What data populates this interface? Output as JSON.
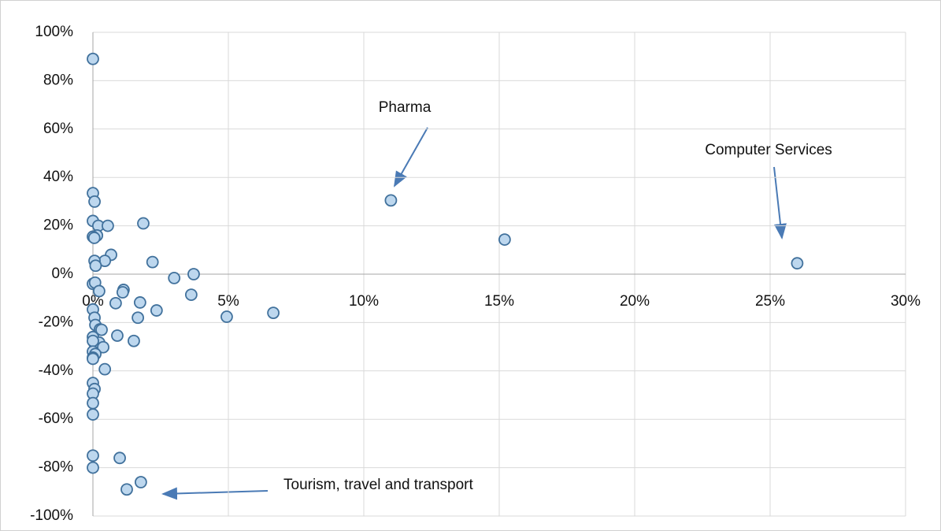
{
  "chart_data": {
    "type": "scatter",
    "x": [
      0,
      0,
      0.06,
      0,
      0.2,
      0.55,
      1.86,
      0.15,
      0,
      0.05,
      0.67,
      0.44,
      0.06,
      0.1,
      2.2,
      3.0,
      3.72,
      3.63,
      0,
      0.08,
      0.23,
      1.13,
      1.1,
      0.84,
      1.74,
      0,
      2.35,
      1.66,
      4.94,
      6.66,
      0.06,
      0.09,
      0.26,
      0.32,
      0.9,
      0,
      1.51,
      0.06,
      0.23,
      0,
      0.38,
      0,
      0.09,
      0,
      0,
      0.44,
      0,
      0.06,
      0,
      0,
      0,
      0,
      0.99,
      0,
      1.77,
      1.25,
      11.0,
      15.2,
      26.0
    ],
    "values": [
      89,
      33.5,
      30,
      22,
      20,
      20,
      21,
      16,
      15.5,
      15,
      8,
      5.5,
      5.5,
      3.5,
      5,
      -1.6,
      0,
      -8.5,
      -4,
      -3.5,
      -7,
      -6.5,
      -7.5,
      -12,
      -11.7,
      -14.6,
      -15,
      -18,
      -17.6,
      -16,
      -18,
      -21,
      -22.8,
      -23,
      -25.4,
      -26,
      -27.6,
      -28.6,
      -28.3,
      -27.6,
      -30.2,
      -32,
      -33,
      -34.5,
      -35,
      -39.3,
      -45,
      -47.5,
      -49.4,
      -53.3,
      -58,
      -75,
      -76,
      -80,
      -86,
      -89,
      30.5,
      14.3,
      4.5
    ],
    "color": "#bdd7ee",
    "edge_color": "#41719c",
    "xlim": [
      0,
      30
    ],
    "ylim": [
      -100,
      100
    ],
    "xticks": [
      {
        "value": 0,
        "label": "0%"
      },
      {
        "value": 5,
        "label": "5%"
      },
      {
        "value": 10,
        "label": "10%"
      },
      {
        "value": 15,
        "label": "15%"
      },
      {
        "value": 20,
        "label": "20%"
      },
      {
        "value": 25,
        "label": "25%"
      },
      {
        "value": 30,
        "label": "30%"
      }
    ],
    "yticks": [
      {
        "value": -100,
        "label": "-100%"
      },
      {
        "value": -80,
        "label": "-80%"
      },
      {
        "value": -60,
        "label": "-60%"
      },
      {
        "value": -40,
        "label": "-40%"
      },
      {
        "value": -20,
        "label": "-20%"
      },
      {
        "value": 0,
        "label": "0%"
      },
      {
        "value": 20,
        "label": "20%"
      },
      {
        "value": 40,
        "label": "40%"
      },
      {
        "value": 60,
        "label": "60%"
      },
      {
        "value": 80,
        "label": "80%"
      },
      {
        "value": 100,
        "label": "100%"
      }
    ],
    "grid": true,
    "annotations": [
      "Pharma",
      "Computer Services",
      "Tourism, travel and transport"
    ]
  }
}
